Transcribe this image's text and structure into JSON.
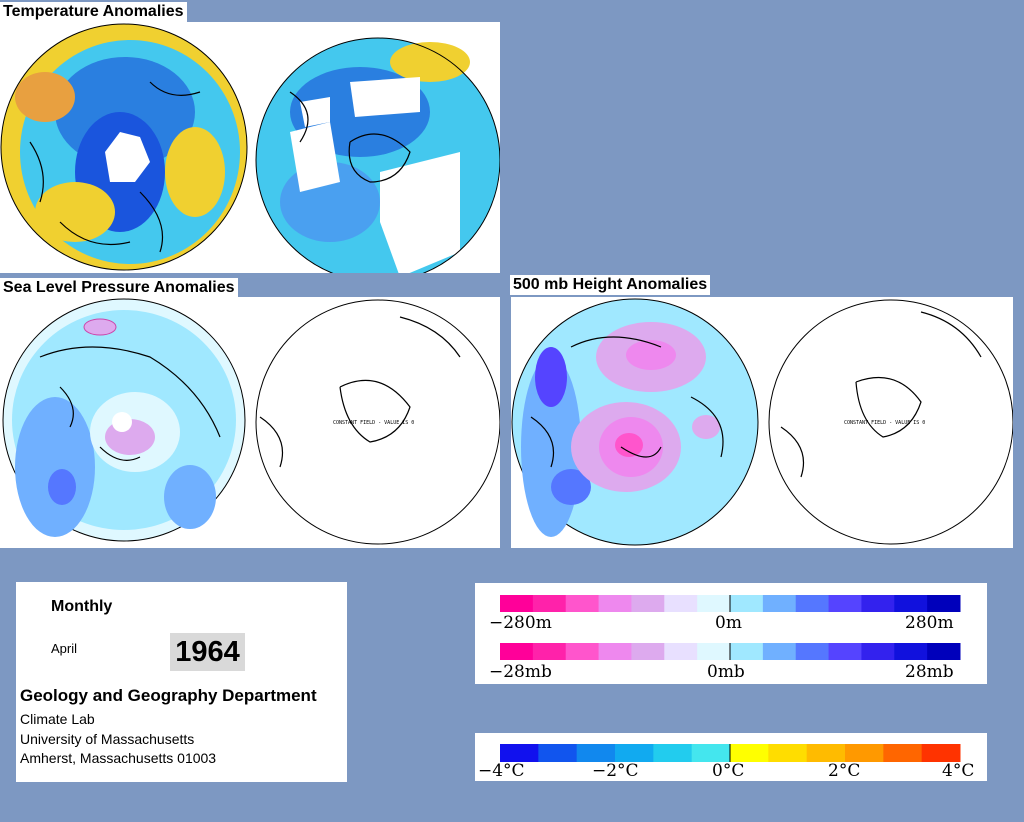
{
  "titles": {
    "temperature": "Temperature Anomalies",
    "slp": "Sea Level Pressure Anomalies",
    "height500": "500 mb Height Anomalies"
  },
  "globe_labels": {
    "slp_right": "CONSTANT FIELD - VALUE IS 0",
    "height_right": "CONSTANT FIELD - VALUE IS 0"
  },
  "info": {
    "period": "Monthly",
    "month": "April",
    "year": "1964",
    "department": "Geology and Geography Department",
    "lab": "Climate Lab",
    "university": "University of Massachusetts",
    "address": "Amherst, Massachusetts 01003"
  },
  "legend_height": {
    "left": "−280m",
    "mid": "0m",
    "right": "280m",
    "colors": [
      "#ff0099",
      "#ff22aa",
      "#ff55cc",
      "#ee88ee",
      "#ddaaee",
      "#e8e0ff",
      "#dff8ff",
      "#a0e8ff",
      "#70b0ff",
      "#5577ff",
      "#5544ff",
      "#3322ee",
      "#1111dd",
      "#0000bb"
    ]
  },
  "legend_pressure": {
    "left": "−28mb",
    "mid": "0mb",
    "right": "28mb",
    "colors": [
      "#ff0099",
      "#ff22aa",
      "#ff55cc",
      "#ee88ee",
      "#ddaaee",
      "#e8e0ff",
      "#dff8ff",
      "#a0e8ff",
      "#70b0ff",
      "#5577ff",
      "#5544ff",
      "#3322ee",
      "#1111dd",
      "#0000bb"
    ]
  },
  "legend_temperature": {
    "labels": [
      "−4°C",
      "−2°C",
      "0°C",
      "2°C",
      "4°C"
    ],
    "colors": [
      "#1111ee",
      "#1155ee",
      "#1188ee",
      "#11aaf0",
      "#22ccee",
      "#44e6ee",
      "#ffff00",
      "#ffdd00",
      "#ffbb00",
      "#ff9900",
      "#ff6600",
      "#ff3300"
    ]
  }
}
